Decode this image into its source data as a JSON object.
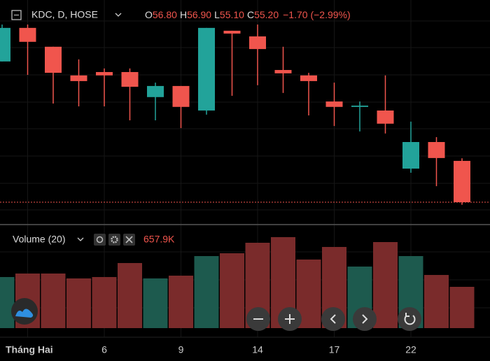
{
  "chart_data": {
    "type": "candlestick",
    "symbol": "KDC, D, HOSE",
    "ohlc_letters": [
      "O",
      "H",
      "L",
      "C"
    ],
    "ohlc_display": [
      "56.80",
      "56.90",
      "55.10",
      "55.20"
    ],
    "change": "−1.70 (−2.99%)",
    "categories": [
      null,
      "Tháng Hai",
      null,
      null,
      "6",
      null,
      null,
      "9",
      null,
      null,
      "14",
      null,
      null,
      "17",
      null,
      null,
      "22",
      null,
      null
    ],
    "open": [
      60.65,
      61.95,
      61.22,
      60.11,
      60.24,
      60.24,
      59.27,
      59.7,
      58.75,
      61.84,
      61.62,
      60.32,
      60.11,
      59.1,
      58.89,
      58.75,
      56.5,
      57.53,
      56.8
    ],
    "high": [
      62.08,
      62.08,
      61.22,
      60.73,
      60.38,
      60.38,
      59.83,
      59.7,
      61.95,
      61.84,
      62.08,
      61.22,
      60.21,
      59.83,
      59.1,
      60.11,
      58.32,
      57.72,
      56.9
    ],
    "low": [
      60.65,
      60.13,
      59.02,
      58.91,
      58.91,
      58.37,
      58.37,
      58.07,
      58.59,
      59.32,
      59.73,
      59.43,
      58.56,
      58.15,
      57.94,
      57.86,
      56.34,
      55.82,
      55.1
    ],
    "close": [
      61.95,
      61.41,
      60.21,
      59.89,
      60.11,
      59.67,
      59.7,
      58.89,
      61.95,
      61.73,
      61.13,
      60.19,
      59.89,
      58.89,
      58.94,
      58.24,
      57.53,
      56.91,
      55.2
    ],
    "up_color": "#22a39a",
    "down_color": "#f0554d",
    "ylim": [
      54.36,
      63.03
    ],
    "volume": {
      "name": "Volume (20)",
      "legend_value": "657.9K",
      "values": [
        814,
        870,
        870,
        792,
        814,
        1037,
        792,
        836,
        1148,
        1193,
        1360,
        1450,
        1093,
        1293,
        981,
        1371,
        1148,
        847,
        657.9
      ],
      "up_color": "#1d5a4e",
      "down_color": "#7a2b2b",
      "ylim": [
        0,
        1594
      ]
    }
  }
}
